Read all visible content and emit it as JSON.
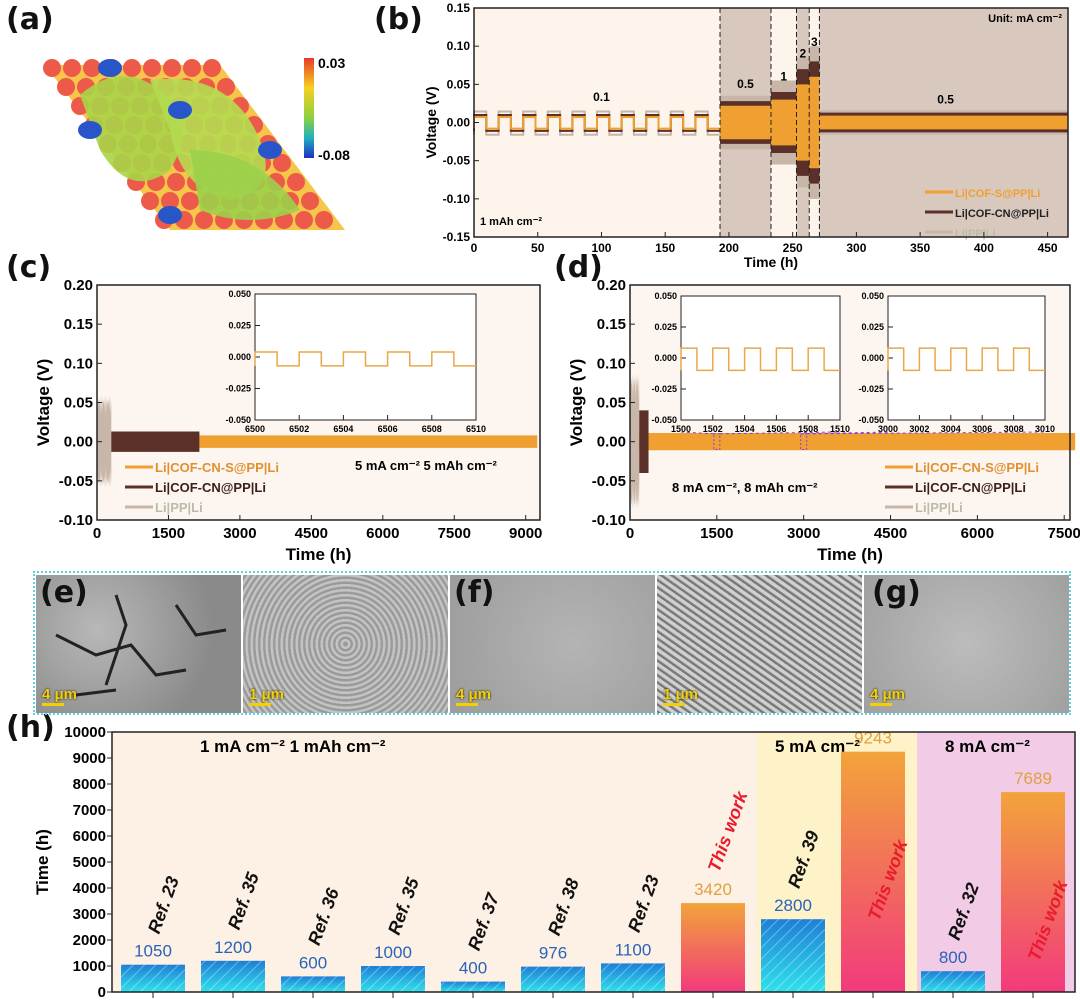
{
  "panel_labels": {
    "a": "(a)",
    "b": "(b)",
    "c": "(c)",
    "d": "(d)",
    "e": "(e)",
    "f": "(f)",
    "g": "(g)",
    "h": "(h)"
  },
  "panel_a": {
    "colorbar_max": "0.03",
    "colorbar_min": "-0.08"
  },
  "sem_images": [
    {
      "panel": "e",
      "scale": "4 μm"
    },
    {
      "panel": "",
      "scale": "1 μm"
    },
    {
      "panel": "f",
      "scale": "4 μm"
    },
    {
      "panel": "",
      "scale": "1 μm"
    },
    {
      "panel": "g",
      "scale": "4 μm"
    }
  ],
  "colors": {
    "cof_s": "#f0a030",
    "cof_cn": "#5a3028",
    "pp": "#c8b6a8",
    "bar_blue": "#1e86d8",
    "bar_cyan": "#2fe0ea",
    "this_work_top": "#f2a23a",
    "this_work_bottom": "#f23c7c",
    "value_blue": "#2a64b8",
    "value_orange": "#e0a040",
    "red_label": "#e81c2c"
  },
  "chart_data": [
    {
      "id": "b",
      "type": "line",
      "xlabel": "Time (h)",
      "ylabel": "Voltage (V)",
      "xlim": [
        0,
        466
      ],
      "ylim": [
        -0.15,
        0.15
      ],
      "xticks": [
        0,
        50,
        100,
        150,
        200,
        250,
        300,
        350,
        400,
        450
      ],
      "yticks": [
        "-0.15",
        "-0.10",
        "-0.05",
        "0.00",
        "0.05",
        "0.10",
        "0.15"
      ],
      "unit_note": "Unit: mA cm⁻²",
      "capacity_note": "1 mAh cm⁻²",
      "segments": [
        {
          "current": "0.1",
          "start": 0,
          "end": 193
        },
        {
          "current": "0.5",
          "start": 193,
          "end": 233
        },
        {
          "current": "1",
          "start": 233,
          "end": 253
        },
        {
          "current": "2",
          "start": 253,
          "end": 263
        },
        {
          "current": "3",
          "start": 263,
          "end": 271
        },
        {
          "current": "0.5",
          "start": 271,
          "end": 466
        }
      ],
      "series": [
        {
          "name": "Li|PP|Li",
          "overpotential": [
            0.016,
            0.035,
            0.055,
            0.085,
            0.1,
            0.016
          ]
        },
        {
          "name": "Li|COF-CN@PP|Li",
          "overpotential": [
            0.011,
            0.028,
            0.04,
            0.07,
            0.08,
            0.013
          ]
        },
        {
          "name": "Li|COF-S@PP|Li",
          "overpotential": [
            0.008,
            0.022,
            0.03,
            0.05,
            0.06,
            0.009
          ]
        }
      ]
    },
    {
      "id": "c",
      "type": "line",
      "xlabel": "Time (h)",
      "ylabel": "Voltage (V)",
      "xlim": [
        0,
        9300
      ],
      "ylim": [
        -0.1,
        0.2
      ],
      "xticks": [
        0,
        1500,
        3000,
        4500,
        6000,
        7500,
        9000
      ],
      "yticks": [
        "-0.10",
        "-0.05",
        "0.00",
        "0.05",
        "0.10",
        "0.15",
        "0.20"
      ],
      "condition": "5 mA cm⁻² 5 mAh cm⁻²",
      "series": [
        {
          "name": "Li|PP|Li",
          "start": 0,
          "end": 300,
          "overpotential": 0.06
        },
        {
          "name": "Li|COF-CN@PP|Li",
          "start": 300,
          "end": 2150,
          "overpotential": 0.013
        },
        {
          "name": "Li|COF-CN-S@PP|Li",
          "start": 2150,
          "end": 9243,
          "overpotential": 0.008
        }
      ],
      "insets": [
        {
          "xlim": [
            6500,
            6510
          ],
          "ylim": [
            -0.05,
            0.05
          ],
          "xticks": [
            "6500",
            "6502",
            "6504",
            "6506",
            "6508",
            "6510"
          ],
          "yticks": [
            "-0.050",
            "-0.025",
            "0.000",
            "0.025",
            "0.050"
          ],
          "high": 0.004,
          "low": -0.007,
          "period": 2
        }
      ]
    },
    {
      "id": "d",
      "type": "line",
      "xlabel": "Time (h)",
      "ylabel": "Voltage (V)",
      "xlim": [
        0,
        7600
      ],
      "ylim": [
        -0.1,
        0.2
      ],
      "xticks": [
        0,
        1500,
        3000,
        4500,
        6000,
        7500
      ],
      "yticks": [
        "-0.10",
        "-0.05",
        "0.00",
        "0.05",
        "0.10",
        "0.15",
        "0.20"
      ],
      "condition": "8 mA cm⁻², 8 mAh cm⁻²",
      "series": [
        {
          "name": "Li|PP|Li",
          "start": 0,
          "end": 160,
          "overpotential": 0.09
        },
        {
          "name": "Li|COF-CN@PP|Li",
          "start": 160,
          "end": 320,
          "overpotential": 0.04
        },
        {
          "name": "Li|COF-CN-S@PP|Li",
          "start": 0,
          "end": 7689,
          "overpotential": 0.011
        }
      ],
      "insets": [
        {
          "xlim": [
            1500,
            1510
          ],
          "ylim": [
            -0.05,
            0.05
          ],
          "xticks": [
            "1500",
            "1502",
            "1504",
            "1506",
            "1508",
            "1510"
          ],
          "yticks": [
            "-0.050",
            "-0.025",
            "0.000",
            "0.025",
            "0.050"
          ],
          "high": 0.008,
          "low": -0.01,
          "period": 2
        },
        {
          "xlim": [
            3000,
            3010
          ],
          "ylim": [
            -0.05,
            0.05
          ],
          "xticks": [
            "3000",
            "3002",
            "3004",
            "3006",
            "3008",
            "3010"
          ],
          "yticks": [
            "-0.050",
            "-0.025",
            "0.000",
            "0.025",
            "0.050"
          ],
          "high": 0.008,
          "low": -0.01,
          "period": 2
        }
      ]
    },
    {
      "id": "h",
      "type": "bar",
      "ylabel": "Time (h)",
      "ylim": [
        0,
        10000
      ],
      "yticks": [
        "0",
        "1000",
        "2000",
        "3000",
        "4000",
        "5000",
        "6000",
        "7000",
        "8000",
        "9000",
        "10000"
      ],
      "groups": [
        {
          "label": "1 mA cm⁻²  1 mAh cm⁻²",
          "from": 0,
          "to": 7
        },
        {
          "label": "5 mA cm⁻²",
          "from": 8,
          "to": 9
        },
        {
          "label": "8 mA cm⁻²",
          "from": 10,
          "to": 11
        }
      ],
      "categories": [
        "Ref. 23",
        "Ref. 35",
        "Ref. 36",
        "Ref. 35",
        "Ref. 37",
        "Ref. 38",
        "Ref. 23",
        "This work",
        "Ref. 39",
        "This work",
        "Ref. 32",
        "This work"
      ],
      "values": [
        1050,
        1200,
        600,
        1000,
        400,
        976,
        1100,
        3420,
        2800,
        9243,
        800,
        7689
      ]
    }
  ]
}
